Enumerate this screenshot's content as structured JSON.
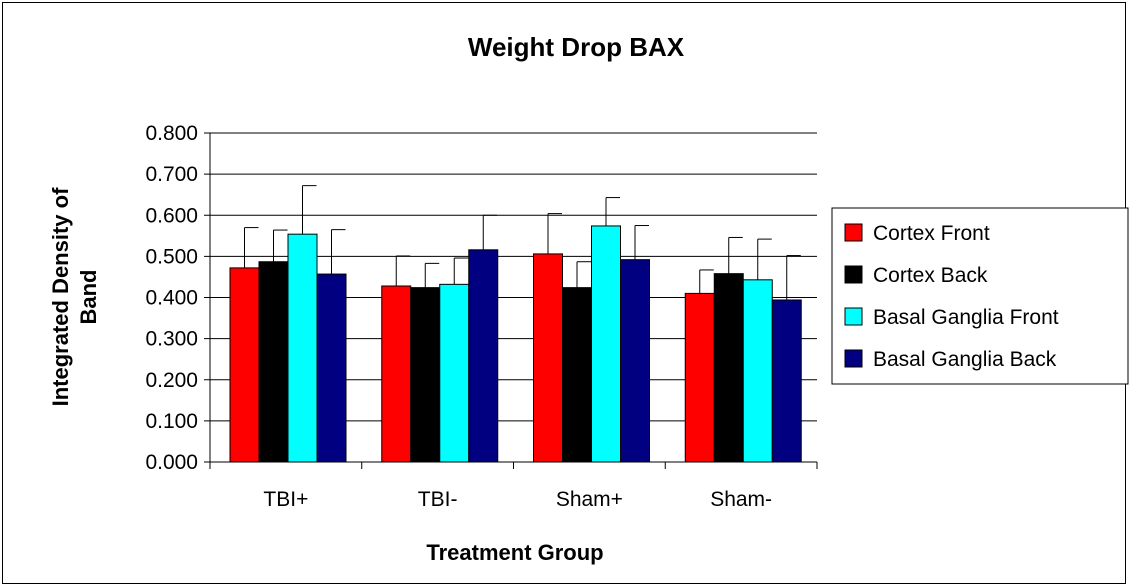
{
  "chart_data": {
    "type": "bar",
    "title": "Weight Drop BAX",
    "xlabel": "Treatment Group",
    "ylabel": "Integrated Density of Band",
    "ylabel_lines": [
      "Integrated Density of",
      "Band"
    ],
    "categories": [
      "TBI+",
      "TBI-",
      "Sham+",
      "Sham-"
    ],
    "ylim": [
      0,
      0.8
    ],
    "yticks": [
      "0.000",
      "0.100",
      "0.200",
      "0.300",
      "0.400",
      "0.500",
      "0.600",
      "0.700",
      "0.800"
    ],
    "grid": true,
    "legend_position": "right",
    "series": [
      {
        "name": "Cortex Front",
        "color": "#ff0000",
        "values": [
          0.472,
          0.428,
          0.506,
          0.41
        ],
        "errors": [
          0.098,
          0.073,
          0.098,
          0.057
        ]
      },
      {
        "name": "Cortex Back",
        "color": "#000000",
        "values": [
          0.487,
          0.424,
          0.424,
          0.458
        ],
        "errors": [
          0.077,
          0.059,
          0.063,
          0.088
        ]
      },
      {
        "name": "Basal Ganglia Front",
        "color": "#00ffff",
        "values": [
          0.554,
          0.432,
          0.574,
          0.443
        ],
        "errors": [
          0.118,
          0.064,
          0.069,
          0.099
        ]
      },
      {
        "name": "Basal Ganglia Back",
        "color": "#000080",
        "values": [
          0.457,
          0.516,
          0.492,
          0.394
        ],
        "errors": [
          0.108,
          0.084,
          0.083,
          0.108
        ]
      }
    ]
  }
}
